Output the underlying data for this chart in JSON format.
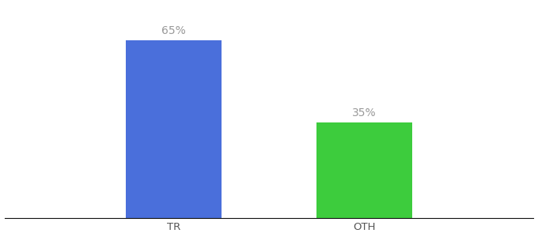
{
  "categories": [
    "TR",
    "OTH"
  ],
  "values": [
    65,
    35
  ],
  "bar_colors": [
    "#4a6fdb",
    "#3dcc3d"
  ],
  "label_texts": [
    "65%",
    "35%"
  ],
  "background_color": "#ffffff",
  "ylim": [
    0,
    78
  ],
  "bar_width": 0.18,
  "label_fontsize": 10,
  "tick_fontsize": 9.5,
  "label_color": "#999999",
  "tick_color": "#555555",
  "x_positions": [
    0.32,
    0.68
  ],
  "xlim": [
    0.0,
    1.0
  ]
}
